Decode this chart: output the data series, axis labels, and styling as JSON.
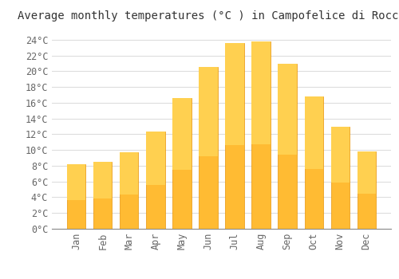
{
  "title": "Average monthly temperatures (°C ) in Campofelice di Roccella",
  "months": [
    "Jan",
    "Feb",
    "Mar",
    "Apr",
    "May",
    "Jun",
    "Jul",
    "Aug",
    "Sep",
    "Oct",
    "Nov",
    "Dec"
  ],
  "values": [
    8.2,
    8.5,
    9.7,
    12.3,
    16.6,
    20.5,
    23.6,
    23.8,
    20.9,
    16.8,
    13.0,
    9.8
  ],
  "bar_color": "#FFBB33",
  "bar_edge_color": "#E8950A",
  "background_color": "#FFFFFF",
  "grid_color": "#DDDDDD",
  "ylim": [
    0,
    25.5
  ],
  "yticks": [
    0,
    2,
    4,
    6,
    8,
    10,
    12,
    14,
    16,
    18,
    20,
    22,
    24
  ],
  "ytick_labels": [
    "0°C",
    "2°C",
    "4°C",
    "6°C",
    "8°C",
    "10°C",
    "12°C",
    "14°C",
    "16°C",
    "18°C",
    "20°C",
    "22°C",
    "24°C"
  ],
  "title_fontsize": 10,
  "tick_fontsize": 8.5,
  "font_family": "monospace",
  "tick_color": "#666666",
  "title_color": "#333333"
}
